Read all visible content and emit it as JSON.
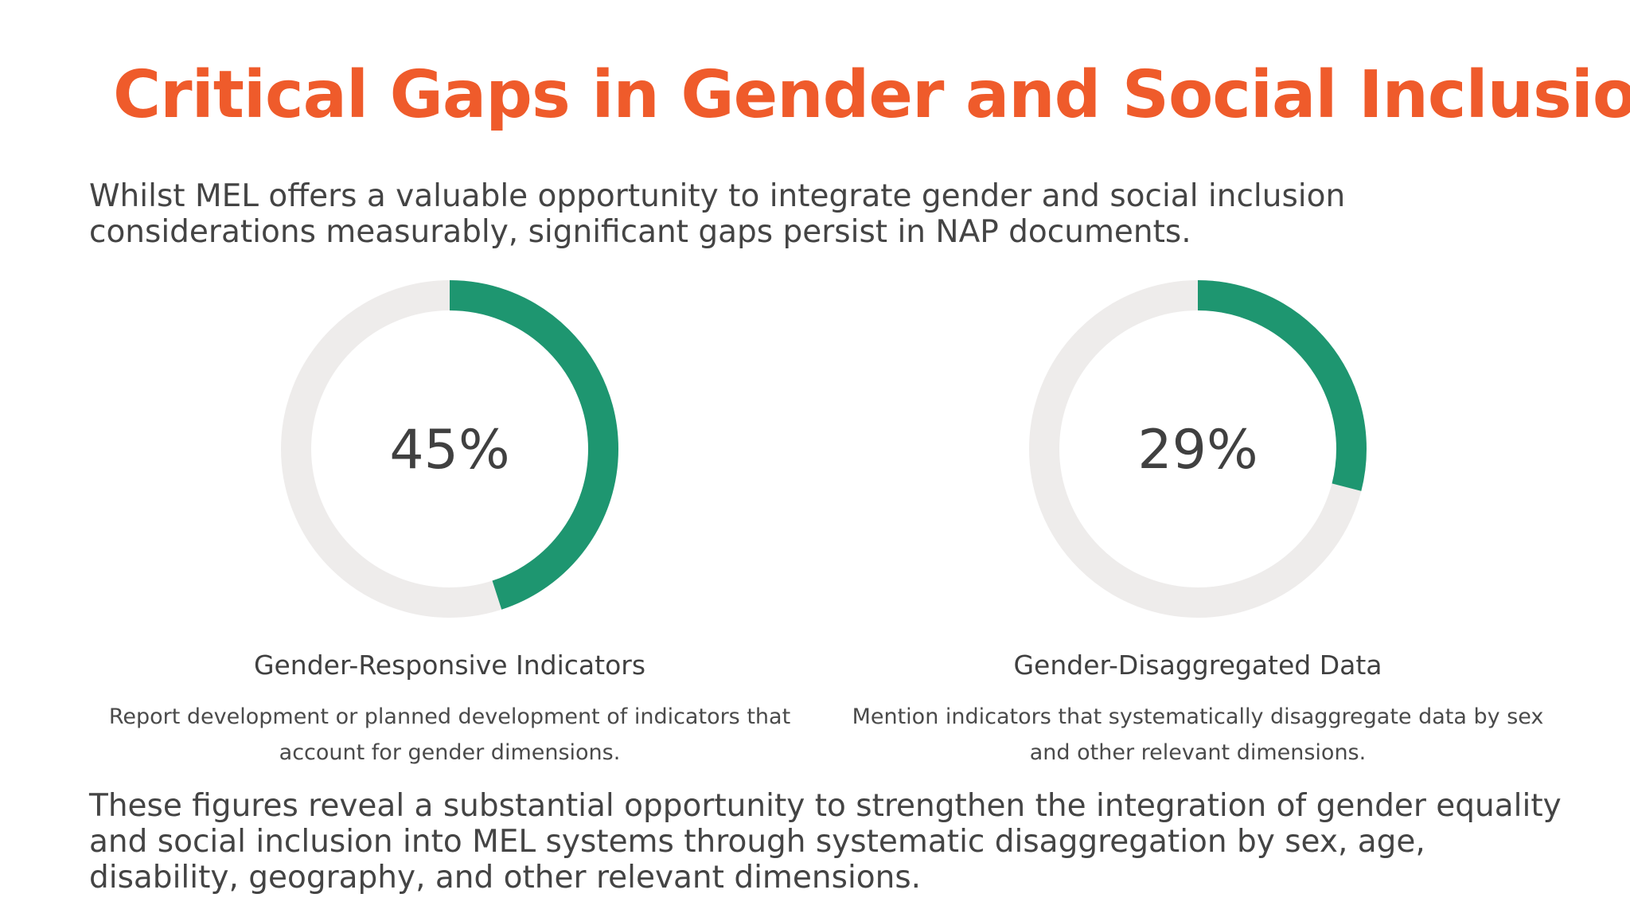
{
  "title": "Critical Gaps in Gender and Social Inclusion",
  "intro": "Whilst MEL offers a valuable opportunity to integrate gender and social inclusion considerations measurably, significant gaps persist in NAP documents.",
  "stats": [
    {
      "value_text": "45%",
      "label": "Gender-Responsive Indicators",
      "description": "Report development or planned development of indicators that account for gender dimensions."
    },
    {
      "value_text": "29%",
      "label": "Gender-Disaggregated Data",
      "description": "Mention indicators that systematically disaggregate data by sex and other relevant dimensions."
    }
  ],
  "conclusion": "These figures reveal a substantial opportunity to strengthen the integration of gender equality and social inclusion into MEL systems through systematic disaggregation by sex, age, disability, geography, and other relevant dimensions.",
  "colors": {
    "title": "#ef5b2b",
    "progress": "#1e9670",
    "track": "#eeeceb"
  },
  "chart_data": [
    {
      "type": "pie",
      "variant": "donut-progress",
      "values": [
        45,
        55
      ],
      "unit": "%",
      "value_label": "45%",
      "label": "Gender-Responsive Indicators"
    },
    {
      "type": "pie",
      "variant": "donut-progress",
      "values": [
        29,
        71
      ],
      "unit": "%",
      "value_label": "29%",
      "label": "Gender-Disaggregated Data"
    }
  ]
}
